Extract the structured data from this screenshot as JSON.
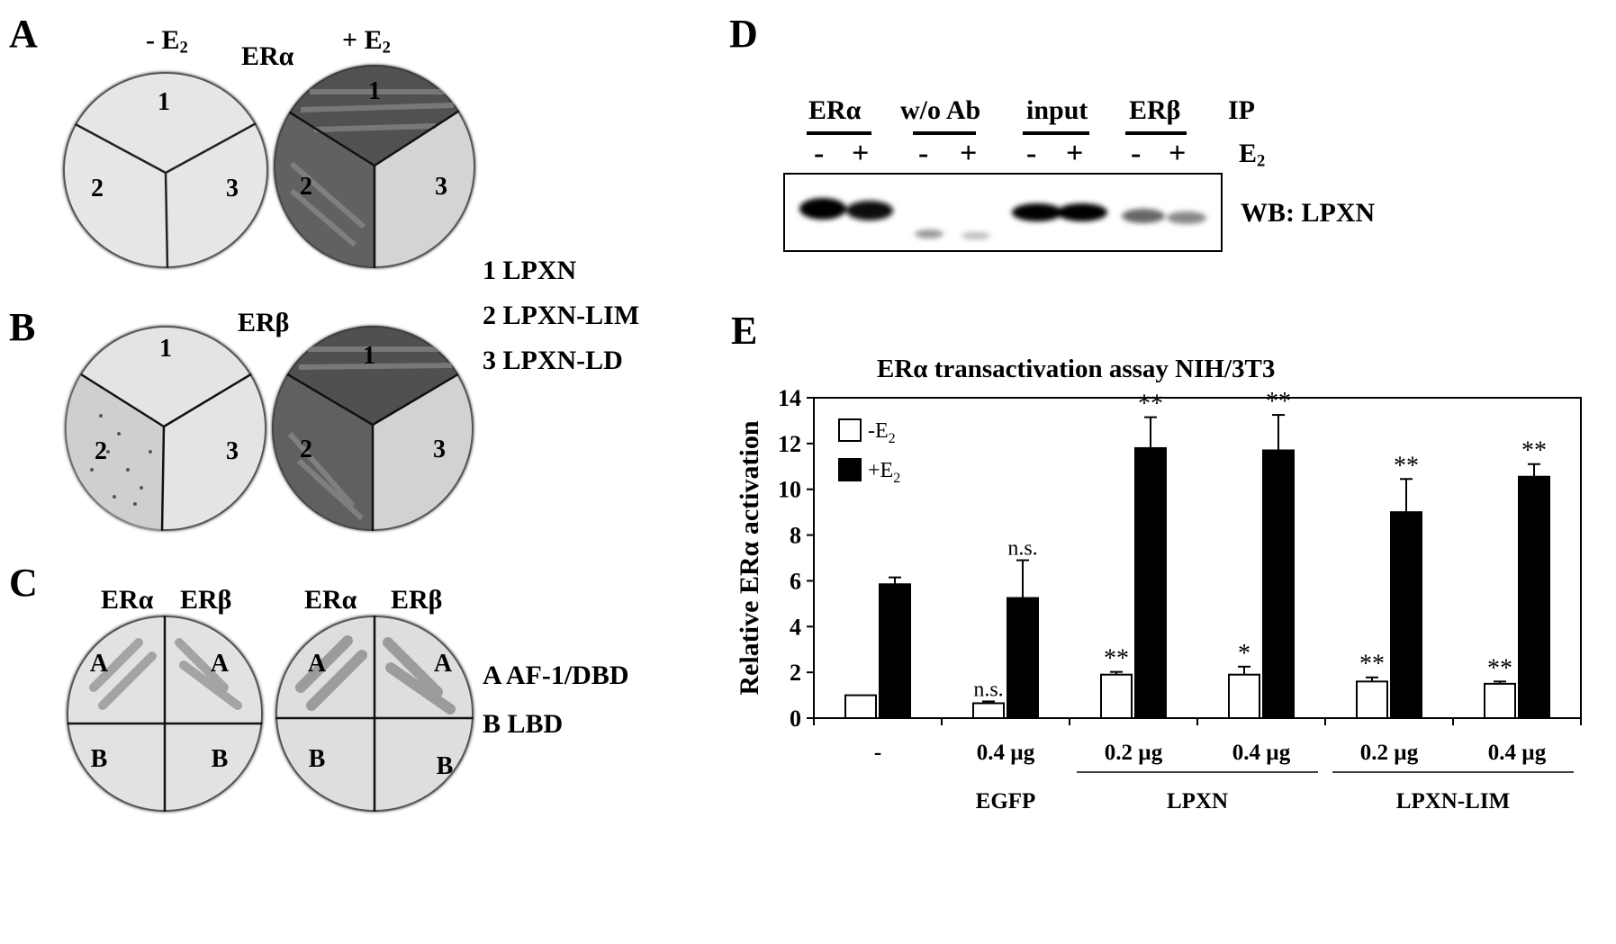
{
  "panels": {
    "A": {
      "label": "A",
      "minus_e2": "- E",
      "plus_e2": "+ E",
      "e2_sub": "2",
      "receptor": "ERα",
      "sectors": [
        "1",
        "2",
        "3"
      ]
    },
    "B": {
      "label": "B",
      "receptor": "ERβ",
      "sectors": [
        "1",
        "2",
        "3"
      ]
    },
    "legend_ab": [
      "1 LPXN",
      "2 LPXN-LIM",
      "3 LPXN-LD"
    ],
    "C": {
      "label": "C",
      "col1": "ERα",
      "col2": "ERβ",
      "quadA": "A",
      "quadB": "B",
      "legend": [
        "A  AF-1/DBD",
        "B  LBD"
      ]
    },
    "D": {
      "label": "D",
      "lanes": [
        "ERα",
        "w/o Ab",
        "input",
        "ERβ"
      ],
      "ip": "IP",
      "signs": [
        "-",
        "+"
      ],
      "e2": "E",
      "e2_sub": "2",
      "wb": "WB: LPXN"
    },
    "E": {
      "label": "E"
    }
  },
  "chart_data": {
    "type": "bar",
    "title": "ERα transactivation assay NIH/3T3",
    "ylabel": "Relative ERα activation",
    "ylim": [
      0,
      14
    ],
    "yticks": [
      0,
      2,
      4,
      6,
      8,
      10,
      12,
      14
    ],
    "categories": [
      "-",
      "0.4 µg",
      "0.2 µg",
      "0.4 µg",
      "0.2 µg",
      "0.4 µg"
    ],
    "groups": [
      {
        "label": "EGFP",
        "categories": [
          1
        ]
      },
      {
        "label": "LPXN",
        "categories": [
          2,
          3
        ]
      },
      {
        "label": "LPXN-LIM",
        "categories": [
          4,
          5
        ]
      }
    ],
    "series": [
      {
        "name": "-E2",
        "color": "#ffffff",
        "values": [
          1.0,
          0.65,
          1.9,
          1.9,
          1.6,
          1.5
        ],
        "errors": [
          0,
          0.08,
          0.12,
          0.35,
          0.18,
          0.1
        ],
        "annotations": [
          "",
          "n.s.",
          "**",
          "*",
          "**",
          "**"
        ]
      },
      {
        "name": "+E2",
        "color": "#000000",
        "values": [
          5.85,
          5.25,
          11.8,
          11.7,
          9.0,
          10.55
        ],
        "errors": [
          0.3,
          1.65,
          1.35,
          1.55,
          1.45,
          0.55
        ],
        "annotations": [
          "",
          "n.s.",
          "**",
          "**",
          "**",
          "**"
        ]
      }
    ],
    "legend": {
      "placement": "top-left",
      "entries": [
        "-E",
        "+E"
      ],
      "sub": "2"
    },
    "grid": false
  }
}
